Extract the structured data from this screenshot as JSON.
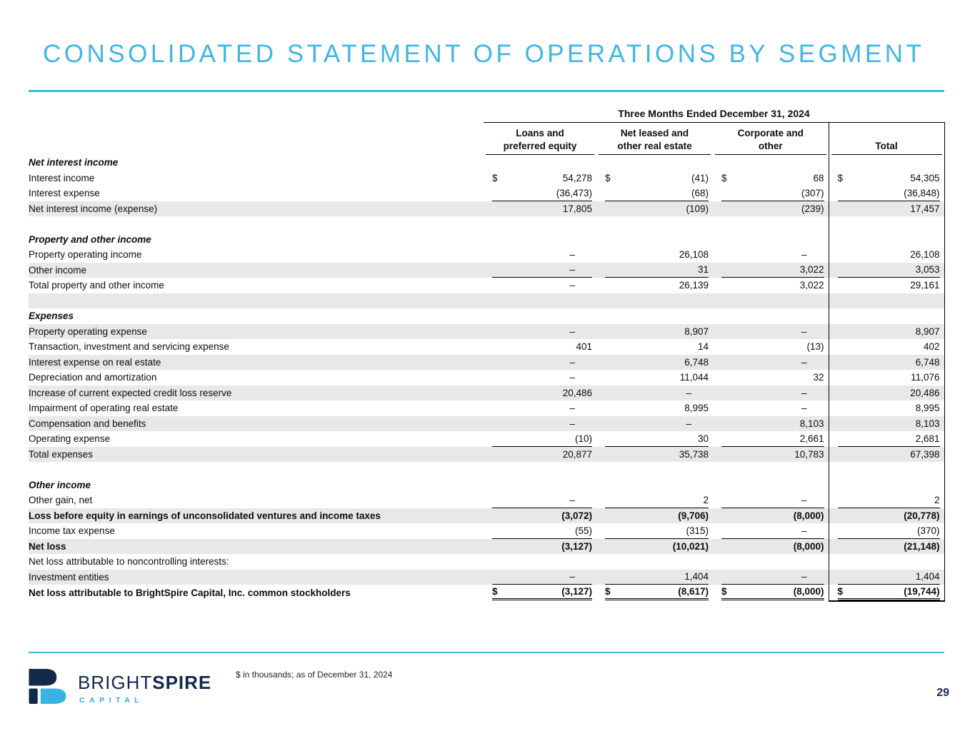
{
  "slide": {
    "title": "CONSOLIDATED STATEMENT OF OPERATIONS BY SEGMENT",
    "footnote": "$ in thousands; as of December 31, 2024",
    "page_number": "29"
  },
  "logo": {
    "brand_regular": "BRIGHT",
    "brand_bold": "SPIRE",
    "subtitle": "CAPITAL"
  },
  "colors": {
    "accent_blue": "#41B6E6",
    "navy": "#13284B",
    "row_shade": "#E8E8E8"
  },
  "table": {
    "period_header": "Three Months Ended December 31, 2024",
    "currency_symbol": "$",
    "columns": [
      {
        "line1": "Loans and",
        "line2": "preferred equity"
      },
      {
        "line1": "Net leased and",
        "line2": "other real estate"
      },
      {
        "line1": "Corporate and",
        "line2": "other"
      },
      {
        "line1": "Total",
        "line2": ""
      }
    ],
    "rows": [
      {
        "type": "section",
        "label": "Net interest income"
      },
      {
        "type": "data",
        "label": "Interest income",
        "indent": 1,
        "dollar": true,
        "values": [
          "54,278",
          "(41)",
          "68",
          "54,305"
        ]
      },
      {
        "type": "data",
        "label": "Interest expense",
        "indent": 1,
        "underline": true,
        "values": [
          "(36,473)",
          "(68)",
          "(307)",
          "(36,848)"
        ]
      },
      {
        "type": "data",
        "label": "Net interest income (expense)",
        "indent": 2,
        "shaded": true,
        "values": [
          "17,805",
          "(109)",
          "(239)",
          "17,457"
        ]
      },
      {
        "type": "spacer"
      },
      {
        "type": "section",
        "label": "Property and other income"
      },
      {
        "type": "data",
        "label": "Property operating income",
        "indent": 1,
        "values": [
          "–",
          "26,108",
          "–",
          "26,108"
        ]
      },
      {
        "type": "data",
        "label": "Other income",
        "indent": 1,
        "shaded": true,
        "underline": true,
        "values": [
          "–",
          "31",
          "3,022",
          "3,053"
        ]
      },
      {
        "type": "data",
        "label": "Total property and other income",
        "indent": 3,
        "values": [
          "–",
          "26,139",
          "3,022",
          "29,161"
        ]
      },
      {
        "type": "spacer",
        "shaded": true
      },
      {
        "type": "section",
        "label": "Expenses"
      },
      {
        "type": "data",
        "label": "Property operating expense",
        "indent": 1,
        "shaded": true,
        "values": [
          "–",
          "8,907",
          "–",
          "8,907"
        ]
      },
      {
        "type": "data",
        "label": "Transaction, investment and servicing expense",
        "indent": 1,
        "values": [
          "401",
          "14",
          "(13)",
          "402"
        ]
      },
      {
        "type": "data",
        "label": "Interest expense on real estate",
        "indent": 1,
        "shaded": true,
        "values": [
          "–",
          "6,748",
          "–",
          "6,748"
        ]
      },
      {
        "type": "data",
        "label": "Depreciation and amortization",
        "indent": 1,
        "values": [
          "–",
          "11,044",
          "32",
          "11,076"
        ]
      },
      {
        "type": "data",
        "label": "Increase of current expected credit loss reserve",
        "indent": 1,
        "shaded": true,
        "values": [
          "20,486",
          "–",
          "–",
          "20,486"
        ]
      },
      {
        "type": "data",
        "label": "Impairment of operating real estate",
        "indent": 1,
        "values": [
          "–",
          "8,995",
          "–",
          "8,995"
        ]
      },
      {
        "type": "data",
        "label": "Compensation and benefits",
        "indent": 1,
        "shaded": true,
        "values": [
          "–",
          "–",
          "8,103",
          "8,103"
        ]
      },
      {
        "type": "data",
        "label": "Operating expense",
        "indent": 1,
        "underline": true,
        "values": [
          "(10)",
          "30",
          "2,661",
          "2,681"
        ]
      },
      {
        "type": "data",
        "label": "Total expenses",
        "indent": 3,
        "shaded": true,
        "values": [
          "20,877",
          "35,738",
          "10,783",
          "67,398"
        ]
      },
      {
        "type": "spacer"
      },
      {
        "type": "section",
        "label": "Other income"
      },
      {
        "type": "data",
        "label": "Other gain, net",
        "indent": 1,
        "underline": true,
        "values": [
          "–",
          "2",
          "–",
          "2"
        ]
      },
      {
        "type": "data",
        "label": "Loss before equity in earnings of unconsolidated ventures and income taxes",
        "indent": 0,
        "bold": true,
        "shaded": true,
        "values": [
          "(3,072)",
          "(9,706)",
          "(8,000)",
          "(20,778)"
        ]
      },
      {
        "type": "data",
        "label": "Income tax expense",
        "indent": 1,
        "underline": true,
        "values": [
          "(55)",
          "(315)",
          "–",
          "(370)"
        ]
      },
      {
        "type": "data",
        "label": "Net loss",
        "indent": 0,
        "bold": true,
        "shaded": true,
        "values": [
          "(3,127)",
          "(10,021)",
          "(8,000)",
          "(21,148)"
        ]
      },
      {
        "type": "data",
        "label": "Net loss attributable to noncontrolling interests:",
        "indent": 0,
        "values": null
      },
      {
        "type": "data",
        "label": "Investment entities",
        "indent": 1,
        "shaded": true,
        "underline": true,
        "values": [
          "–",
          "1,404",
          "–",
          "1,404"
        ]
      },
      {
        "type": "data",
        "label": "Net loss attributable to BrightSpire Capital, Inc. common stockholders",
        "indent": 0,
        "bold": true,
        "dollar": true,
        "double_underline": true,
        "values": [
          "(3,127)",
          "(8,617)",
          "(8,000)",
          "(19,744)"
        ]
      }
    ]
  }
}
